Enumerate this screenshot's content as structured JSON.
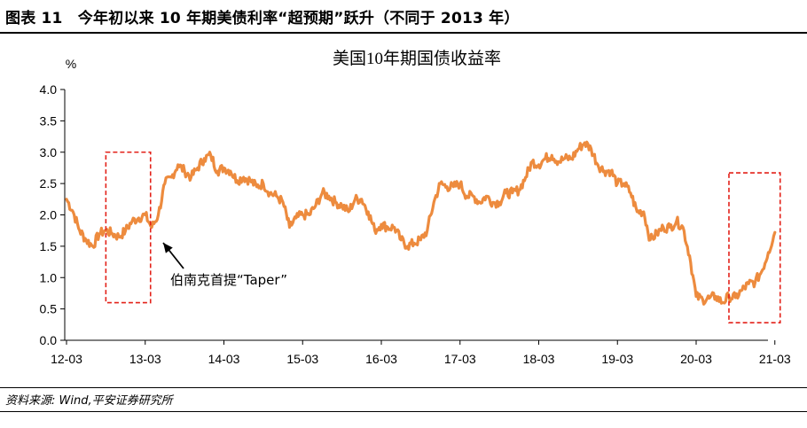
{
  "figure_title": "图表 11　今年初以来 10 年期美债利率“超预期”跃升（不同于 2013 年）",
  "source_note": "资料来源: Wind,平安证券研究所",
  "colors": {
    "series": "#ED8B3E",
    "highlight_box": "#E32119",
    "axis": "#000000"
  },
  "chart_data": {
    "type": "line",
    "title": "美国10年期国债收益率",
    "ylabel": "%",
    "xlabel": "",
    "ylim": [
      0,
      4.0
    ],
    "y_ticks": [
      "0.0",
      "0.5",
      "1.0",
      "1.5",
      "2.0",
      "2.5",
      "3.0",
      "3.5",
      "4.0"
    ],
    "x_ticks": [
      "12-03",
      "13-03",
      "14-03",
      "15-03",
      "16-03",
      "17-03",
      "18-03",
      "19-03",
      "20-03",
      "21-03"
    ],
    "x_domain": [
      "2012-03",
      "2021-03"
    ],
    "annotation": {
      "text": "伯南克首提“Taper”",
      "points_to": "2013-05"
    },
    "highlight_periods": [
      {
        "from": "2012-09",
        "to": "2013-03",
        "y_range": [
          0.6,
          3.0
        ]
      },
      {
        "from": "2020-08",
        "to": "2021-03",
        "y_range": [
          0.28,
          2.67
        ]
      }
    ],
    "series": [
      {
        "x": [
          "2012-03",
          "2012-04",
          "2012-05",
          "2012-06",
          "2012-07",
          "2012-08",
          "2012-09",
          "2012-10",
          "2012-11",
          "2012-12",
          "2013-01",
          "2013-02",
          "2013-03",
          "2013-04",
          "2013-05",
          "2013-06",
          "2013-07",
          "2013-08",
          "2013-09",
          "2013-10",
          "2013-11",
          "2013-12",
          "2014-01",
          "2014-02",
          "2014-03",
          "2014-04",
          "2014-05",
          "2014-06",
          "2014-07",
          "2014-08",
          "2014-09",
          "2014-10",
          "2014-11",
          "2014-12",
          "2015-01",
          "2015-02",
          "2015-03",
          "2015-04",
          "2015-05",
          "2015-06",
          "2015-07",
          "2015-08",
          "2015-09",
          "2015-10",
          "2015-11",
          "2015-12",
          "2016-01",
          "2016-02",
          "2016-03",
          "2016-04",
          "2016-05",
          "2016-06",
          "2016-07",
          "2016-08",
          "2016-09",
          "2016-10",
          "2016-11",
          "2016-12",
          "2017-01",
          "2017-02",
          "2017-03",
          "2017-04",
          "2017-05",
          "2017-06",
          "2017-07",
          "2017-08",
          "2017-09",
          "2017-10",
          "2017-11",
          "2017-12",
          "2018-01",
          "2018-02",
          "2018-03",
          "2018-04",
          "2018-05",
          "2018-06",
          "2018-07",
          "2018-08",
          "2018-09",
          "2018-10",
          "2018-11",
          "2018-12",
          "2019-01",
          "2019-02",
          "2019-03",
          "2019-04",
          "2019-05",
          "2019-06",
          "2019-07",
          "2019-08",
          "2019-09",
          "2019-10",
          "2019-11",
          "2019-12",
          "2020-01",
          "2020-02",
          "2020-03",
          "2020-04",
          "2020-05",
          "2020-06",
          "2020-07",
          "2020-08",
          "2020-09",
          "2020-10",
          "2020-11",
          "2020-12",
          "2021-01",
          "2021-02",
          "2021-03"
        ],
        "y": [
          2.25,
          2.05,
          1.75,
          1.6,
          1.5,
          1.7,
          1.75,
          1.7,
          1.65,
          1.75,
          1.9,
          1.95,
          2.0,
          1.8,
          2.0,
          2.5,
          2.6,
          2.8,
          2.7,
          2.6,
          2.75,
          2.9,
          2.95,
          2.7,
          2.75,
          2.7,
          2.55,
          2.6,
          2.55,
          2.45,
          2.5,
          2.35,
          2.3,
          2.2,
          1.8,
          1.95,
          2.0,
          2.0,
          2.15,
          2.35,
          2.3,
          2.2,
          2.15,
          2.05,
          2.25,
          2.25,
          2.05,
          1.75,
          1.85,
          1.8,
          1.8,
          1.6,
          1.5,
          1.55,
          1.6,
          1.75,
          2.2,
          2.5,
          2.45,
          2.45,
          2.5,
          2.3,
          2.3,
          2.2,
          2.3,
          2.2,
          2.2,
          2.35,
          2.35,
          2.4,
          2.6,
          2.85,
          2.8,
          2.9,
          2.95,
          2.85,
          2.9,
          2.9,
          3.05,
          3.15,
          3.05,
          2.8,
          2.7,
          2.7,
          2.5,
          2.5,
          2.35,
          2.05,
          2.05,
          1.6,
          1.7,
          1.8,
          1.8,
          1.9,
          1.8,
          1.35,
          0.7,
          0.65,
          0.67,
          0.7,
          0.6,
          0.7,
          0.68,
          0.8,
          0.9,
          0.93,
          1.1,
          1.4,
          1.72
        ]
      }
    ]
  }
}
